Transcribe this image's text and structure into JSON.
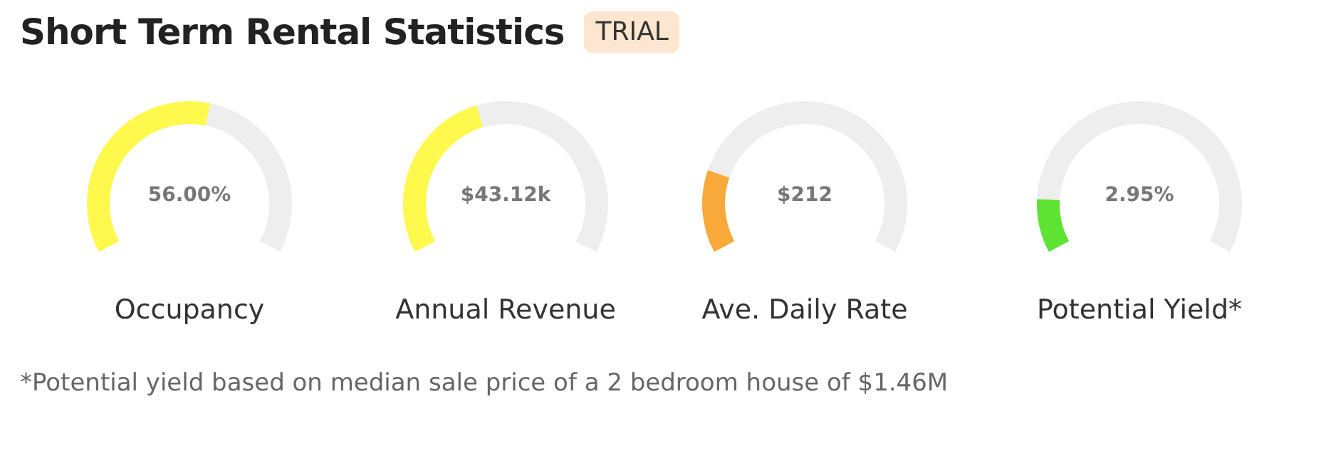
{
  "chart_data": [
    {
      "type": "other",
      "title": "Short Term Rental Statistics",
      "annotations": [
        "TRIAL",
        "*Potential yield based on median sale price of a 2 bedroom house of $1.46M"
      ]
    },
    {
      "type": "donut",
      "title": "Occupancy",
      "annotations": [
        "56.00%"
      ],
      "categories": [
        null,
        null
      ],
      "values": [
        55,
        45
      ],
      "colors": [
        "#fff84d",
        "#eeeeee"
      ]
    },
    {
      "type": "donut",
      "title": "Annual Revenue",
      "annotations": [
        "$43.12k"
      ],
      "categories": [
        null,
        null
      ],
      "values": [
        43,
        57
      ],
      "colors": [
        "#fff84d",
        "#eeeeee"
      ]
    },
    {
      "type": "donut",
      "title": "Ave. Daily Rate",
      "annotations": [
        "$212"
      ],
      "categories": [
        null,
        null
      ],
      "values": [
        20,
        80
      ],
      "colors": [
        "#f8a93a",
        "#eeeeee"
      ]
    },
    {
      "type": "donut",
      "title": "Potential Yield*",
      "annotations": [
        "2.95%"
      ],
      "categories": [
        null,
        null
      ],
      "values": [
        13,
        87
      ],
      "colors": [
        "#5ee332",
        "#eeeeee"
      ]
    }
  ]
}
